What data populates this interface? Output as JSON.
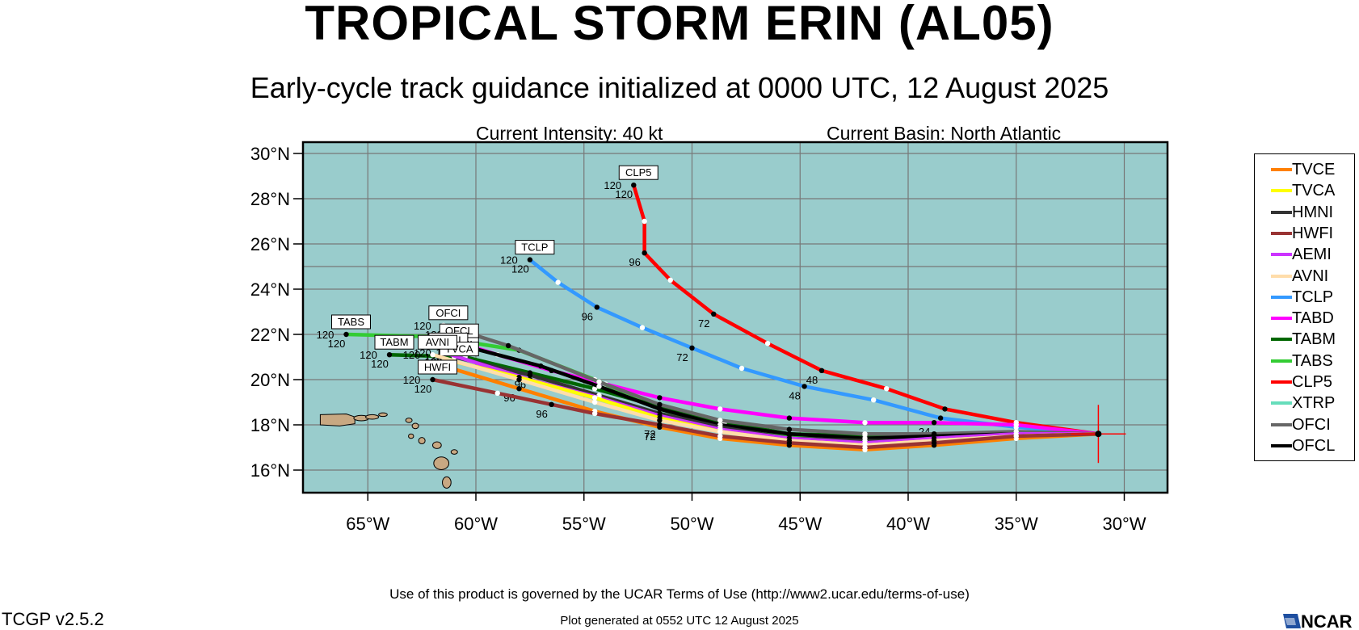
{
  "header": {
    "title": "TROPICAL STORM ERIN (AL05)",
    "subtitle": "Early-cycle track guidance initialized at 0000 UTC, 12 August 2025",
    "intensity": "Current Intensity: 40 kt",
    "basin": "Current Basin: North Atlantic"
  },
  "footer": {
    "terms": "Use of this product is governed by the UCAR Terms of Use (http://www2.ucar.edu/terms-of-use)",
    "version": "TCGP v2.5.2",
    "generated": "Plot generated at 0552 UTC   12 August 2025",
    "logo_text": "NCAR"
  },
  "map": {
    "lon_range": [
      -68,
      -28
    ],
    "lat_range": [
      15,
      30.5
    ],
    "lon_ticks": [
      -65,
      -60,
      -55,
      -50,
      -45,
      -40,
      -35,
      -30
    ],
    "lat_ticks": [
      16,
      18,
      20,
      22,
      24,
      26,
      28,
      30
    ],
    "lon_tick_labels": [
      "65°W",
      "60°W",
      "55°W",
      "50°W",
      "45°W",
      "40°W",
      "35°W",
      "30°W"
    ],
    "lat_tick_labels": [
      "16°N",
      "18°N",
      "20°N",
      "22°N",
      "24°N",
      "26°N",
      "28°N",
      "30°N"
    ],
    "ocean_color": "#99cccc",
    "land_color": "#c8a882",
    "storm_position": [
      -31.2,
      17.6
    ]
  },
  "legend": [
    {
      "name": "TVCE",
      "color": "#ff8000"
    },
    {
      "name": "TVCA",
      "color": "#ffff00"
    },
    {
      "name": "HMNI",
      "color": "#333333"
    },
    {
      "name": "HWFI",
      "color": "#993333"
    },
    {
      "name": "AEMI",
      "color": "#cc33ff"
    },
    {
      "name": "AVNI",
      "color": "#ffddaa"
    },
    {
      "name": "TCLP",
      "color": "#3399ff"
    },
    {
      "name": "TABD",
      "color": "#ff00ff"
    },
    {
      "name": "TABM",
      "color": "#006600"
    },
    {
      "name": "TABS",
      "color": "#33cc33"
    },
    {
      "name": "CLP5",
      "color": "#ff0000"
    },
    {
      "name": "XTRP",
      "color": "#66ddbb"
    },
    {
      "name": "OFCI",
      "color": "#666666"
    },
    {
      "name": "OFCL",
      "color": "#000000"
    }
  ],
  "chart_data": {
    "type": "line",
    "x_axis": "longitude",
    "y_axis": "latitude",
    "series": [
      {
        "name": "CLP5",
        "color": "#ff0000",
        "end_label": "CLP5",
        "end_hour": "120",
        "points": [
          [
            -31.2,
            17.6
          ],
          [
            -35,
            18.1
          ],
          [
            -38.3,
            18.7
          ],
          [
            -41,
            19.6
          ],
          [
            -44,
            20.4
          ],
          [
            -46.5,
            21.6
          ],
          [
            -49,
            22.9
          ],
          [
            -51,
            24.4
          ],
          [
            -52.2,
            25.6
          ],
          [
            -52.2,
            27.0
          ],
          [
            -52.7,
            28.6
          ]
        ],
        "hour_labels": [
          {
            "pt": 4,
            "text": "48"
          },
          {
            "pt": 6,
            "text": "72"
          },
          {
            "pt": 8,
            "text": "96"
          },
          {
            "pt": 10,
            "text": "120"
          }
        ]
      },
      {
        "name": "TCLP",
        "color": "#3399ff",
        "end_label": "TCLP",
        "end_hour": "120",
        "points": [
          [
            -31.2,
            17.6
          ],
          [
            -35,
            17.9
          ],
          [
            -38.5,
            18.3
          ],
          [
            -41.6,
            19.1
          ],
          [
            -44.8,
            19.7
          ],
          [
            -47.7,
            20.5
          ],
          [
            -50,
            21.4
          ],
          [
            -52.3,
            22.3
          ],
          [
            -54.4,
            23.2
          ],
          [
            -56.2,
            24.3
          ],
          [
            -57.5,
            25.3
          ]
        ],
        "hour_labels": [
          {
            "pt": 4,
            "text": "48"
          },
          {
            "pt": 6,
            "text": "72"
          },
          {
            "pt": 8,
            "text": "96"
          },
          {
            "pt": 10,
            "text": "120"
          }
        ]
      },
      {
        "name": "TABD",
        "color": "#ff00ff",
        "end_label": "",
        "end_hour": "",
        "points": [
          [
            -31.2,
            17.6
          ],
          [
            -35,
            18.0
          ],
          [
            -38.8,
            18.1
          ],
          [
            -42,
            18.1
          ],
          [
            -45.5,
            18.3
          ],
          [
            -48.7,
            18.7
          ],
          [
            -51.5,
            19.2
          ],
          [
            -54,
            19.8
          ],
          [
            -56.5,
            20.4
          ],
          [
            -59,
            21.1
          ],
          [
            -61,
            21.7
          ]
        ],
        "hour_labels": [
          {
            "pt": 2,
            "text": "24"
          }
        ]
      },
      {
        "name": "TABS",
        "color": "#33cc33",
        "end_label": "TABS",
        "end_hour": "120",
        "points": [
          [
            -31.2,
            17.6
          ],
          [
            -35,
            17.6
          ],
          [
            -38.8,
            17.4
          ],
          [
            -42,
            17.4
          ],
          [
            -45.5,
            17.5
          ],
          [
            -48.7,
            17.9
          ],
          [
            -51.5,
            18.7
          ],
          [
            -54.5,
            20.0
          ],
          [
            -58,
            21.3
          ],
          [
            -62,
            21.9
          ],
          [
            -66,
            22.0
          ]
        ],
        "hour_labels": [
          {
            "pt": 10,
            "text": "120"
          }
        ]
      },
      {
        "name": "TABM",
        "color": "#006600",
        "end_label": "TABM",
        "end_hour": "120",
        "points": [
          [
            -31.2,
            17.6
          ],
          [
            -35,
            17.6
          ],
          [
            -38.6,
            17.5
          ],
          [
            -42,
            17.5
          ],
          [
            -45.5,
            17.6
          ],
          [
            -48.5,
            18.1
          ],
          [
            -51.5,
            18.8
          ],
          [
            -54.5,
            19.6
          ],
          [
            -57.5,
            20.3
          ],
          [
            -60.5,
            21.0
          ],
          [
            -64,
            21.1
          ]
        ],
        "hour_labels": [
          {
            "pt": 10,
            "text": "120"
          }
        ]
      },
      {
        "name": "OFCI",
        "color": "#666666",
        "end_label": "OFCI",
        "end_hour": "120",
        "points": [
          [
            -31.2,
            17.6
          ],
          [
            -35,
            17.7
          ],
          [
            -38.8,
            17.6
          ],
          [
            -42,
            17.6
          ],
          [
            -45.5,
            17.8
          ],
          [
            -48.7,
            18.2
          ],
          [
            -51.5,
            18.9
          ],
          [
            -54.3,
            19.9
          ],
          [
            -58.5,
            21.5
          ],
          [
            -61.5,
            22.4
          ]
        ],
        "hour_labels": [
          {
            "pt": 9,
            "text": "120"
          }
        ]
      },
      {
        "name": "OFCL",
        "color": "#000000",
        "end_label": "OFCL",
        "end_hour": "120",
        "points": [
          [
            -31.2,
            17.6
          ],
          [
            -35,
            17.6
          ],
          [
            -38.8,
            17.5
          ],
          [
            -42,
            17.4
          ],
          [
            -45.5,
            17.6
          ],
          [
            -48.7,
            18.0
          ],
          [
            -51.5,
            18.7
          ],
          [
            -54.3,
            19.7
          ],
          [
            -57,
            20.6
          ],
          [
            -61,
            21.6
          ]
        ],
        "hour_labels": [
          {
            "pt": 9,
            "text": "120"
          }
        ]
      },
      {
        "name": "HMNI",
        "color": "#333333",
        "end_label": "HMNI",
        "end_hour": "120",
        "points": [
          [
            -31.2,
            17.6
          ],
          [
            -35,
            17.5
          ],
          [
            -38.8,
            17.3
          ],
          [
            -42,
            17.3
          ],
          [
            -45.5,
            17.4
          ],
          [
            -48.7,
            17.9
          ],
          [
            -51.5,
            18.5
          ],
          [
            -54.3,
            19.3
          ],
          [
            -57.5,
            20.2
          ],
          [
            -61,
            21.0
          ]
        ],
        "hour_labels": [
          {
            "pt": 8,
            "text": "96"
          },
          {
            "pt": 9,
            "text": "120"
          }
        ]
      },
      {
        "name": "AEMI",
        "color": "#cc33ff",
        "end_label": "AEMI",
        "end_hour": "120",
        "points": [
          [
            -31.2,
            17.6
          ],
          [
            -35,
            17.6
          ],
          [
            -38.8,
            17.4
          ],
          [
            -42,
            17.2
          ],
          [
            -45.5,
            17.4
          ],
          [
            -48.7,
            17.8
          ],
          [
            -51.5,
            18.4
          ],
          [
            -54.3,
            19.2
          ],
          [
            -57.5,
            20.0
          ],
          [
            -61.5,
            21.2
          ]
        ],
        "hour_labels": [
          {
            "pt": 9,
            "text": "120"
          }
        ]
      },
      {
        "name": "TVCA",
        "color": "#ffff00",
        "end_label": "TVCA",
        "end_hour": "120",
        "points": [
          [
            -31.2,
            17.6
          ],
          [
            -35,
            17.5
          ],
          [
            -38.8,
            17.3
          ],
          [
            -42,
            17.1
          ],
          [
            -45.5,
            17.3
          ],
          [
            -48.7,
            17.7
          ],
          [
            -51.5,
            18.3
          ],
          [
            -54.5,
            19.2
          ],
          [
            -58,
            20.1
          ],
          [
            -61,
            20.8
          ]
        ],
        "hour_labels": [
          {
            "pt": 9,
            "text": "120"
          }
        ]
      },
      {
        "name": "AVNI",
        "color": "#ffddaa",
        "end_label": "AVNI",
        "end_hour": "120",
        "points": [
          [
            -31.2,
            17.6
          ],
          [
            -35,
            17.5
          ],
          [
            -38.8,
            17.3
          ],
          [
            -42,
            17.1
          ],
          [
            -45.5,
            17.3
          ],
          [
            -48.7,
            17.7
          ],
          [
            -51.5,
            18.2
          ],
          [
            -54.5,
            19.0
          ],
          [
            -58,
            20.0
          ],
          [
            -62,
            21.1
          ]
        ],
        "hour_labels": []
      },
      {
        "name": "TVCE",
        "color": "#ff8000",
        "end_label": "",
        "end_hour": "",
        "points": [
          [
            -31.2,
            17.6
          ],
          [
            -35,
            17.4
          ],
          [
            -38.8,
            17.1
          ],
          [
            -42,
            16.9
          ],
          [
            -45.5,
            17.1
          ],
          [
            -48.7,
            17.4
          ],
          [
            -51.5,
            17.9
          ],
          [
            -54.5,
            18.6
          ],
          [
            -58,
            19.6
          ],
          [
            -61.5,
            20.6
          ]
        ],
        "hour_labels": [
          {
            "pt": 6,
            "text": "72"
          },
          {
            "pt": 8,
            "text": "96"
          }
        ]
      },
      {
        "name": "HWFI",
        "color": "#993333",
        "end_label": "HWFI",
        "end_hour": "120",
        "points": [
          [
            -31.2,
            17.6
          ],
          [
            -35,
            17.5
          ],
          [
            -38.8,
            17.2
          ],
          [
            -42,
            17.0
          ],
          [
            -45.5,
            17.2
          ],
          [
            -48.7,
            17.5
          ],
          [
            -51.5,
            18.0
          ],
          [
            -54.5,
            18.5
          ],
          [
            -56.5,
            18.9
          ],
          [
            -59,
            19.4
          ],
          [
            -62,
            20.0
          ]
        ],
        "hour_labels": [
          {
            "pt": 6,
            "text": "72"
          },
          {
            "pt": 8,
            "text": "96"
          },
          {
            "pt": 10,
            "text": "120"
          }
        ]
      }
    ]
  }
}
